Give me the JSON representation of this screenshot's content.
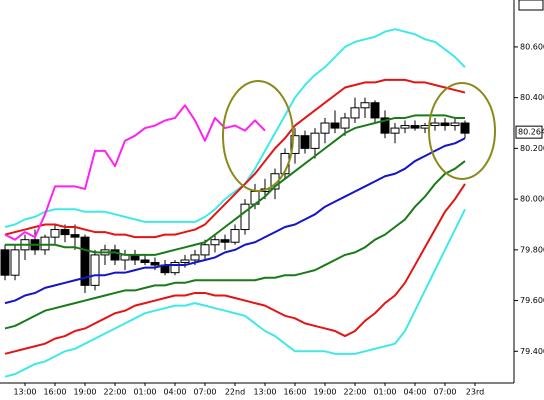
{
  "chart_data": {
    "type": "candlestick",
    "categories": [
      null,
      null,
      "13:00",
      null,
      null,
      "16:00",
      null,
      null,
      "19:00",
      null,
      null,
      "22:00",
      null,
      null,
      "01:00",
      null,
      null,
      "04:00",
      null,
      null,
      "07:00",
      null,
      null,
      "22nd",
      null,
      null,
      "13:00",
      null,
      null,
      "16:00",
      null,
      null,
      "19:00",
      null,
      null,
      "22:00",
      null,
      null,
      "01:00",
      null,
      null,
      "04:00",
      null,
      null,
      "07:00",
      null,
      null,
      "23rd"
    ],
    "candles": {
      "up_color": "#ffffff",
      "down_color": "#000000",
      "open": [
        79.8,
        79.7,
        79.8,
        79.84,
        79.8,
        79.85,
        79.88,
        79.86,
        79.85,
        79.66,
        79.78,
        79.8,
        79.76,
        79.78,
        79.76,
        79.75,
        79.74,
        79.71,
        79.75,
        79.76,
        79.78,
        79.82,
        79.84,
        79.83,
        79.88,
        79.98,
        80.03,
        80.04,
        80.1,
        80.18,
        80.25,
        80.2,
        80.26,
        80.3,
        80.28,
        80.32,
        80.36,
        80.38,
        80.32,
        80.26,
        80.28,
        80.29,
        80.28,
        80.29,
        80.3,
        80.29,
        80.3,
        null
      ],
      "high": [
        79.82,
        79.82,
        79.86,
        79.88,
        79.86,
        79.9,
        79.9,
        79.9,
        79.86,
        79.8,
        79.82,
        79.82,
        79.8,
        79.8,
        79.78,
        79.77,
        79.76,
        79.76,
        79.78,
        79.8,
        79.84,
        79.86,
        79.86,
        79.9,
        80.0,
        80.06,
        80.08,
        80.12,
        80.2,
        80.28,
        80.27,
        80.28,
        80.32,
        80.35,
        80.34,
        80.4,
        80.4,
        80.39,
        80.35,
        80.3,
        80.31,
        80.31,
        80.3,
        80.32,
        80.32,
        80.32,
        80.31,
        null
      ],
      "low": [
        79.68,
        79.68,
        79.76,
        79.78,
        79.78,
        79.82,
        79.83,
        79.8,
        79.63,
        79.64,
        79.74,
        79.74,
        79.72,
        79.74,
        79.74,
        79.72,
        79.7,
        79.7,
        79.73,
        79.74,
        79.76,
        79.79,
        79.8,
        79.82,
        79.86,
        79.96,
        80.0,
        80.0,
        80.08,
        80.14,
        80.18,
        80.16,
        80.22,
        80.26,
        80.25,
        80.3,
        80.32,
        80.3,
        80.24,
        80.22,
        80.26,
        80.27,
        80.26,
        80.27,
        80.27,
        80.27,
        80.24,
        null
      ],
      "close": [
        79.7,
        79.8,
        79.84,
        79.8,
        79.85,
        79.88,
        79.86,
        79.85,
        79.66,
        79.78,
        79.8,
        79.76,
        79.78,
        79.76,
        79.75,
        79.74,
        79.71,
        79.75,
        79.76,
        79.78,
        79.82,
        79.84,
        79.83,
        79.88,
        79.98,
        80.03,
        80.04,
        80.1,
        80.18,
        80.25,
        80.2,
        80.26,
        80.3,
        80.28,
        80.32,
        80.36,
        80.38,
        80.32,
        80.26,
        80.28,
        80.29,
        80.28,
        80.29,
        80.3,
        80.29,
        80.3,
        80.26,
        null
      ]
    },
    "series": [
      {
        "color": "#40e8e8",
        "values": [
          79.89,
          79.9,
          79.92,
          79.93,
          79.95,
          79.96,
          79.96,
          79.96,
          79.95,
          79.95,
          79.95,
          79.94,
          79.93,
          79.92,
          79.91,
          79.91,
          79.91,
          79.91,
          79.91,
          79.91,
          79.93,
          79.96,
          80.0,
          80.03,
          80.06,
          80.12,
          80.19,
          80.26,
          80.33,
          80.4,
          80.45,
          80.49,
          80.52,
          80.56,
          80.6,
          80.62,
          80.63,
          80.64,
          80.66,
          80.67,
          80.66,
          80.65,
          80.63,
          80.62,
          80.59,
          80.56,
          80.52,
          null
        ]
      },
      {
        "color": "#e41414",
        "values": [
          79.86,
          79.87,
          79.88,
          79.89,
          79.9,
          79.9,
          79.89,
          79.89,
          79.88,
          79.87,
          79.87,
          79.86,
          79.86,
          79.85,
          79.85,
          79.85,
          79.86,
          79.86,
          79.87,
          79.88,
          79.9,
          79.94,
          79.98,
          80.02,
          80.06,
          80.1,
          80.15,
          80.2,
          80.24,
          80.29,
          80.32,
          80.35,
          80.38,
          80.41,
          80.44,
          80.45,
          80.46,
          80.46,
          80.47,
          80.47,
          80.47,
          80.46,
          80.46,
          80.45,
          80.44,
          80.43,
          80.42,
          null
        ]
      },
      {
        "color": "#1a7a1a",
        "values": [
          79.82,
          79.82,
          79.82,
          79.82,
          79.82,
          79.82,
          79.81,
          79.81,
          79.8,
          79.79,
          79.79,
          79.79,
          79.78,
          79.78,
          79.78,
          79.78,
          79.79,
          79.8,
          79.81,
          79.82,
          79.83,
          79.86,
          79.89,
          79.92,
          79.95,
          79.98,
          80.01,
          80.05,
          80.08,
          80.11,
          80.14,
          80.17,
          80.2,
          80.23,
          80.26,
          80.28,
          80.29,
          80.3,
          80.31,
          80.32,
          80.32,
          80.33,
          80.33,
          80.33,
          80.33,
          80.32,
          80.32,
          null
        ]
      },
      {
        "color": "#1414c8",
        "values": [
          79.59,
          79.6,
          79.62,
          79.63,
          79.65,
          79.66,
          79.67,
          79.68,
          79.69,
          79.7,
          79.7,
          79.71,
          79.71,
          79.72,
          79.73,
          79.73,
          79.74,
          79.74,
          79.74,
          79.75,
          79.76,
          79.77,
          79.79,
          79.8,
          79.82,
          79.83,
          79.85,
          79.87,
          79.89,
          79.9,
          79.92,
          79.94,
          79.97,
          79.99,
          80.01,
          80.03,
          80.05,
          80.07,
          80.09,
          80.1,
          80.12,
          80.15,
          80.17,
          80.19,
          80.21,
          80.22,
          80.24,
          null
        ]
      },
      {
        "color": "#1a7a1a",
        "values": [
          79.49,
          79.5,
          79.52,
          79.54,
          79.56,
          79.57,
          79.58,
          79.59,
          79.6,
          79.61,
          79.62,
          79.63,
          79.64,
          79.64,
          79.65,
          79.66,
          79.66,
          79.67,
          79.67,
          79.68,
          79.68,
          79.68,
          79.68,
          79.68,
          79.68,
          79.68,
          79.69,
          79.69,
          79.7,
          79.7,
          79.71,
          79.72,
          79.74,
          79.76,
          79.78,
          79.79,
          79.81,
          79.84,
          79.86,
          79.89,
          79.92,
          79.97,
          80.01,
          80.06,
          80.1,
          80.12,
          80.15,
          null
        ]
      },
      {
        "color": "#e41414",
        "values": [
          79.39,
          79.4,
          79.41,
          79.42,
          79.43,
          79.45,
          79.46,
          79.48,
          79.49,
          79.51,
          79.53,
          79.55,
          79.56,
          79.58,
          79.59,
          79.6,
          79.61,
          79.62,
          79.62,
          79.63,
          79.63,
          79.62,
          79.62,
          79.61,
          79.6,
          79.59,
          79.58,
          79.56,
          79.54,
          79.53,
          79.51,
          79.5,
          79.49,
          79.48,
          79.46,
          79.48,
          79.52,
          79.55,
          79.59,
          79.62,
          79.67,
          79.74,
          79.81,
          79.88,
          79.95,
          80.0,
          80.06,
          null
        ]
      },
      {
        "color": "#40e8e8",
        "values": [
          79.3,
          79.31,
          79.33,
          79.35,
          79.36,
          79.38,
          79.4,
          79.41,
          79.43,
          79.45,
          79.47,
          79.49,
          79.51,
          79.53,
          79.55,
          79.56,
          79.57,
          79.58,
          79.58,
          79.59,
          79.58,
          79.57,
          79.56,
          79.55,
          79.54,
          79.51,
          79.48,
          79.46,
          79.43,
          79.4,
          79.4,
          79.4,
          79.4,
          79.39,
          79.39,
          79.39,
          79.4,
          79.41,
          79.42,
          79.43,
          79.48,
          79.56,
          79.64,
          79.72,
          79.8,
          79.88,
          79.96,
          null
        ]
      },
      {
        "color": "#ff22ee",
        "values": [
          79.86,
          79.84,
          79.87,
          79.85,
          79.94,
          80.05,
          80.05,
          80.05,
          80.04,
          80.19,
          80.19,
          80.13,
          80.23,
          80.25,
          80.28,
          80.29,
          80.31,
          80.32,
          80.37,
          80.31,
          80.23,
          80.32,
          80.28,
          80.29,
          80.27,
          80.31,
          80.27,
          null,
          null,
          null,
          null,
          null,
          null,
          null,
          null,
          null,
          null,
          null,
          null,
          null,
          null,
          null,
          null,
          null,
          null,
          null,
          null,
          null
        ]
      }
    ],
    "ylim": [
      79.275,
      80.785
    ],
    "yticks": [
      {
        "value": 79.4,
        "label": "79.400"
      },
      {
        "value": 79.6,
        "label": "79.600"
      },
      {
        "value": 79.8,
        "label": "79.800"
      },
      {
        "value": 80.0,
        "label": "80.000"
      },
      {
        "value": 80.2,
        "label": "80.200"
      },
      {
        "value": 80.4,
        "label": "80.400"
      },
      {
        "value": 80.6,
        "label": "80.600"
      }
    ],
    "last_price": {
      "value": 80.264,
      "label": "80.264"
    },
    "grid": false
  }
}
